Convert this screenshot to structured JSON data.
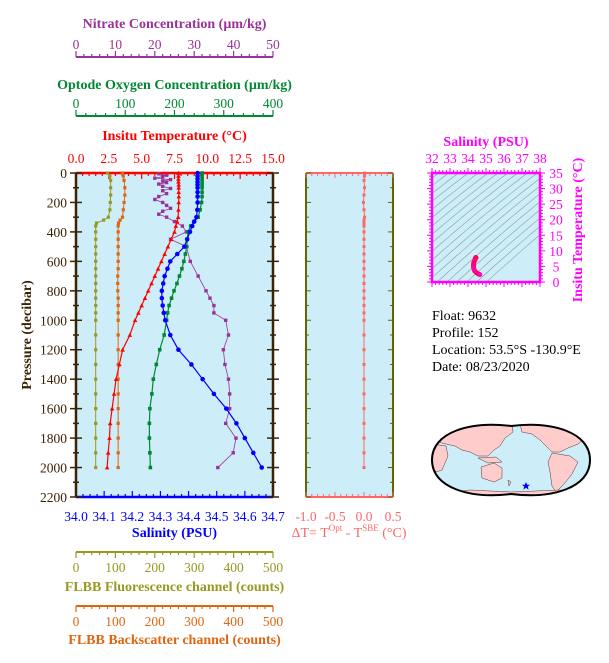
{
  "chart_data": {
    "type": "line",
    "y_axis": {
      "label": "Pressure (decibar)",
      "range": [
        0,
        2200
      ],
      "inverted": true,
      "ticks": [
        "0",
        "200",
        "400",
        "600",
        "800",
        "1000",
        "1200",
        "1400",
        "1600",
        "1800",
        "2000",
        "2200"
      ]
    },
    "x_axes": {
      "nitrate": {
        "label": "Nitrate Concentration (µm/kg)",
        "range": [
          0,
          50
        ],
        "ticks": [
          "0",
          "10",
          "20",
          "30",
          "40",
          "50"
        ],
        "color": "#993399"
      },
      "oxygen": {
        "label": "Optode Oxygen Concentration (µm/kg)",
        "range": [
          0,
          400
        ],
        "ticks": [
          "0",
          "100",
          "200",
          "300",
          "400"
        ],
        "color": "#008833"
      },
      "temperature": {
        "label": "Insitu Temperature (°C)",
        "range": [
          0,
          15
        ],
        "ticks": [
          "0.0",
          "2.5",
          "5.0",
          "7.5",
          "10.0",
          "12.5",
          "15.0"
        ],
        "color": "#ff0000"
      },
      "salinity": {
        "label": "Salinity (PSU)",
        "range": [
          34.0,
          34.7
        ],
        "ticks": [
          "34.0",
          "34.1",
          "34.2",
          "34.3",
          "34.4",
          "34.5",
          "34.6",
          "34.7"
        ],
        "color": "#0000ff"
      },
      "fluorescence": {
        "label": "FLBB Fluorescence channel (counts)",
        "range": [
          0,
          500
        ],
        "ticks": [
          "0",
          "100",
          "200",
          "300",
          "400",
          "500"
        ],
        "color": "#999922"
      },
      "backscatter": {
        "label": "FLBB Backscatter channel (counts)",
        "range": [
          0,
          500
        ],
        "ticks": [
          "0",
          "100",
          "200",
          "300",
          "400",
          "500"
        ],
        "color": "#dd6611"
      }
    },
    "ctd": {
      "pressure": [
        0,
        20,
        40,
        60,
        80,
        100,
        130,
        160,
        200,
        250,
        300,
        330,
        360,
        400,
        450,
        500,
        550,
        600,
        650,
        700,
        750,
        800,
        850,
        900,
        950,
        1000,
        1100,
        1200,
        1300,
        1400,
        1500,
        1600,
        1700,
        1800,
        1900,
        2000
      ],
      "temperature": [
        7.8,
        7.8,
        7.8,
        7.8,
        7.82,
        7.82,
        7.82,
        7.83,
        7.82,
        7.8,
        7.78,
        7.7,
        7.6,
        7.5,
        7.25,
        7.0,
        6.75,
        6.5,
        6.25,
        6.0,
        5.75,
        5.5,
        5.25,
        5.0,
        4.75,
        4.5,
        4.1,
        3.55,
        3.3,
        3.05,
        2.9,
        2.75,
        2.6,
        2.55,
        2.45,
        2.37
      ],
      "salinity": [
        34.432,
        34.432,
        34.432,
        34.432,
        34.432,
        34.432,
        34.432,
        34.432,
        34.432,
        34.431,
        34.428,
        34.42,
        34.413,
        34.405,
        34.395,
        34.385,
        34.36,
        34.335,
        34.325,
        34.315,
        34.31,
        34.305,
        34.305,
        34.308,
        34.312,
        34.317,
        34.335,
        34.364,
        34.41,
        34.45,
        34.49,
        34.534,
        34.57,
        34.6,
        34.63,
        34.66
      ],
      "oxygen": [
        256,
        256,
        256,
        256,
        256,
        256,
        256,
        256,
        255,
        252,
        248,
        240,
        233,
        227,
        226,
        225,
        222,
        219,
        215,
        210,
        205,
        199,
        194,
        189,
        186,
        184,
        179,
        170,
        163,
        157,
        154,
        150,
        149,
        149,
        150,
        151
      ]
    },
    "nitrate": {
      "pressure": [
        5,
        15,
        25,
        35,
        45,
        55,
        65,
        75,
        90,
        105,
        120,
        140,
        160,
        180,
        200,
        220,
        240,
        260,
        280,
        300,
        330,
        360,
        400,
        450,
        500,
        600,
        700,
        800,
        850,
        900,
        950,
        1000,
        1100,
        1200,
        1300,
        1400,
        1500,
        1600,
        1700,
        1800,
        1900,
        2000
      ],
      "values": [
        21,
        23,
        22,
        20,
        24,
        22,
        23,
        21,
        22,
        24,
        22,
        23,
        21,
        20,
        22,
        23,
        24,
        22,
        21,
        23,
        25,
        27,
        28,
        24,
        28,
        29,
        31,
        33,
        34,
        35,
        35,
        38,
        38.7,
        37.4,
        37.8,
        38.7,
        39,
        39,
        38,
        40.6,
        39.9,
        36
      ]
    },
    "flbb": {
      "pressure": [
        0,
        20,
        50,
        100,
        150,
        200,
        250,
        300,
        320,
        340,
        360,
        400,
        450,
        500,
        550,
        600,
        650,
        700,
        750,
        800,
        850,
        900,
        950,
        1000,
        1100,
        1200,
        1300,
        1400,
        1500,
        1600,
        1700,
        1800,
        1900,
        2000
      ],
      "fluorescence": [
        80,
        86,
        88,
        88,
        88,
        87,
        86,
        82,
        70,
        52,
        50,
        50,
        50,
        50,
        50,
        50,
        50,
        50,
        50,
        50,
        50,
        50,
        50,
        50,
        50,
        50,
        50,
        50,
        50,
        50,
        50,
        50,
        50,
        50
      ],
      "backscatter": [
        118,
        120,
        122,
        124,
        124,
        122,
        120,
        118,
        112,
        108,
        107,
        107,
        107,
        107,
        107,
        107,
        107,
        106,
        106,
        106,
        107,
        107,
        107,
        107,
        107,
        107,
        107,
        107,
        107,
        107,
        107,
        107,
        107,
        107
      ]
    },
    "delta_t": {
      "label_prefix": "ΔT= T",
      "sup1": "Opt",
      "label_mid": " - T",
      "sup2": "SBE",
      "label_suffix": " (°C)",
      "range": [
        -1.0,
        0.5
      ],
      "ticks": [
        "-1.0",
        "-0.5",
        "0.0",
        "0.5"
      ],
      "color": "#ff6666",
      "pressure": [
        0,
        20,
        50,
        100,
        150,
        200,
        250,
        300,
        320,
        340,
        360,
        400,
        450,
        500,
        550,
        600,
        650,
        700,
        750,
        800,
        850,
        900,
        950,
        1000,
        1100,
        1200,
        1300,
        1400,
        1500,
        1600,
        1700,
        1800,
        1900,
        2000
      ],
      "values": [
        0.01,
        0.01,
        0.0,
        0.01,
        0.0,
        -0.01,
        0.0,
        0.01,
        0.0,
        0.0,
        0.0,
        0.0,
        0.0,
        0.0,
        0.0,
        0.0,
        0.0,
        0.0,
        0.0,
        0.0,
        0.0,
        0.0,
        0.0,
        0.0,
        0.0,
        0.0,
        0.0,
        0.0,
        0.0,
        0.0,
        0.0,
        0.0,
        0.0,
        0.0
      ]
    },
    "ts_diagram": {
      "type": "scatter",
      "x_label": "Salinity (PSU)",
      "y_label": "Insitu Temperature (°C)",
      "x_range": [
        32,
        38
      ],
      "y_range": [
        0,
        35
      ],
      "x_ticks": [
        "32",
        "33",
        "34",
        "35",
        "36",
        "37",
        "38"
      ],
      "y_ticks": [
        "0",
        "5",
        "10",
        "15",
        "20",
        "25",
        "30",
        "35"
      ],
      "color": "#ff00ff",
      "density_contours": true
    },
    "plot_background": "#cdeef8",
    "frame_color": "#3b2305"
  },
  "info": {
    "float": "Float:  9632",
    "profile": "Profile:  152",
    "location": "Location:  53.5°S  -130.9°E",
    "date": "Date:  08/23/2020"
  },
  "map": {
    "marker": "blue-star",
    "marker_color": "#0000ff",
    "land_color": "#ffcccc",
    "ocean_color": "#cdeef8"
  }
}
